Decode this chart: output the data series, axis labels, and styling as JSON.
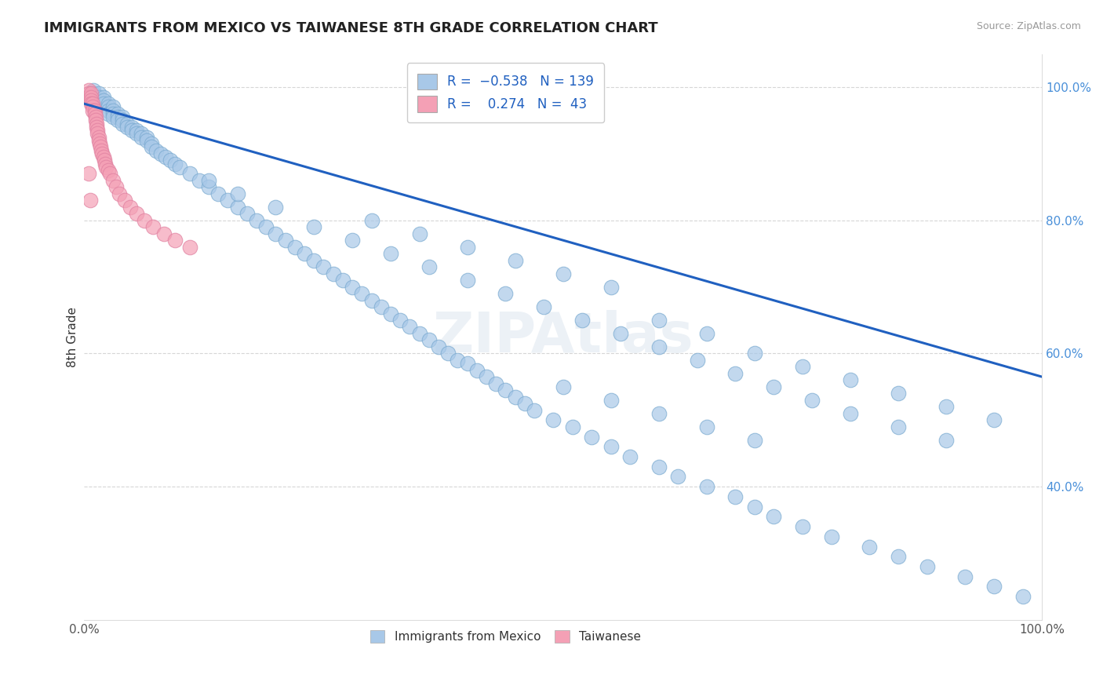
{
  "title": "IMMIGRANTS FROM MEXICO VS TAIWANESE 8TH GRADE CORRELATION CHART",
  "source": "Source: ZipAtlas.com",
  "ylabel": "8th Grade",
  "xlim": [
    0.0,
    1.0
  ],
  "ylim": [
    0.2,
    1.05
  ],
  "yticks": [
    0.4,
    0.6,
    0.8,
    1.0
  ],
  "ytick_labels": [
    "40.0%",
    "60.0%",
    "80.0%",
    "100.0%"
  ],
  "xticks": [
    0.0,
    1.0
  ],
  "xtick_labels": [
    "0.0%",
    "100.0%"
  ],
  "blue_color": "#a8c8e8",
  "pink_color": "#f4a0b5",
  "line_color": "#2060c0",
  "trendline_x": [
    0.0,
    1.0
  ],
  "trendline_y": [
    0.975,
    0.565
  ],
  "blue_scatter_x": [
    0.01,
    0.01,
    0.01,
    0.015,
    0.015,
    0.015,
    0.015,
    0.02,
    0.02,
    0.02,
    0.025,
    0.025,
    0.025,
    0.025,
    0.03,
    0.03,
    0.03,
    0.03,
    0.035,
    0.035,
    0.035,
    0.04,
    0.04,
    0.04,
    0.045,
    0.045,
    0.05,
    0.05,
    0.055,
    0.055,
    0.06,
    0.06,
    0.065,
    0.065,
    0.07,
    0.07,
    0.075,
    0.08,
    0.085,
    0.09,
    0.095,
    0.1,
    0.11,
    0.12,
    0.13,
    0.14,
    0.15,
    0.16,
    0.17,
    0.18,
    0.19,
    0.2,
    0.21,
    0.22,
    0.23,
    0.24,
    0.25,
    0.26,
    0.27,
    0.28,
    0.29,
    0.3,
    0.31,
    0.32,
    0.33,
    0.34,
    0.35,
    0.36,
    0.37,
    0.38,
    0.39,
    0.4,
    0.41,
    0.42,
    0.43,
    0.44,
    0.45,
    0.46,
    0.47,
    0.49,
    0.51,
    0.53,
    0.55,
    0.57,
    0.6,
    0.62,
    0.65,
    0.68,
    0.7,
    0.72,
    0.75,
    0.78,
    0.82,
    0.85,
    0.88,
    0.92,
    0.95,
    0.98,
    0.13,
    0.16,
    0.2,
    0.24,
    0.28,
    0.32,
    0.36,
    0.4,
    0.44,
    0.48,
    0.52,
    0.56,
    0.6,
    0.64,
    0.68,
    0.72,
    0.76,
    0.8,
    0.85,
    0.9,
    0.3,
    0.35,
    0.4,
    0.45,
    0.5,
    0.55,
    0.6,
    0.65,
    0.7,
    0.75,
    0.8,
    0.85,
    0.9,
    0.95,
    0.5,
    0.55,
    0.6,
    0.65,
    0.7
  ],
  "blue_scatter_y": [
    0.995,
    0.99,
    0.985,
    0.99,
    0.985,
    0.98,
    0.975,
    0.985,
    0.98,
    0.975,
    0.975,
    0.97,
    0.965,
    0.96,
    0.97,
    0.965,
    0.96,
    0.955,
    0.96,
    0.955,
    0.95,
    0.955,
    0.95,
    0.945,
    0.945,
    0.94,
    0.94,
    0.935,
    0.935,
    0.93,
    0.93,
    0.925,
    0.925,
    0.92,
    0.915,
    0.91,
    0.905,
    0.9,
    0.895,
    0.89,
    0.885,
    0.88,
    0.87,
    0.86,
    0.85,
    0.84,
    0.83,
    0.82,
    0.81,
    0.8,
    0.79,
    0.78,
    0.77,
    0.76,
    0.75,
    0.74,
    0.73,
    0.72,
    0.71,
    0.7,
    0.69,
    0.68,
    0.67,
    0.66,
    0.65,
    0.64,
    0.63,
    0.62,
    0.61,
    0.6,
    0.59,
    0.585,
    0.575,
    0.565,
    0.555,
    0.545,
    0.535,
    0.525,
    0.515,
    0.5,
    0.49,
    0.475,
    0.46,
    0.445,
    0.43,
    0.415,
    0.4,
    0.385,
    0.37,
    0.355,
    0.34,
    0.325,
    0.31,
    0.295,
    0.28,
    0.265,
    0.25,
    0.235,
    0.86,
    0.84,
    0.82,
    0.79,
    0.77,
    0.75,
    0.73,
    0.71,
    0.69,
    0.67,
    0.65,
    0.63,
    0.61,
    0.59,
    0.57,
    0.55,
    0.53,
    0.51,
    0.49,
    0.47,
    0.8,
    0.78,
    0.76,
    0.74,
    0.72,
    0.7,
    0.65,
    0.63,
    0.6,
    0.58,
    0.56,
    0.54,
    0.52,
    0.5,
    0.55,
    0.53,
    0.51,
    0.49,
    0.47
  ],
  "pink_scatter_x": [
    0.005,
    0.005,
    0.005,
    0.007,
    0.007,
    0.007,
    0.007,
    0.009,
    0.009,
    0.009,
    0.011,
    0.011,
    0.012,
    0.012,
    0.013,
    0.013,
    0.014,
    0.014,
    0.015,
    0.015,
    0.016,
    0.017,
    0.018,
    0.019,
    0.02,
    0.021,
    0.022,
    0.023,
    0.025,
    0.027,
    0.03,
    0.033,
    0.037,
    0.042,
    0.048,
    0.055,
    0.063,
    0.072,
    0.083,
    0.095,
    0.11,
    0.005,
    0.006
  ],
  "pink_scatter_y": [
    0.995,
    0.99,
    0.985,
    0.99,
    0.985,
    0.98,
    0.975,
    0.975,
    0.97,
    0.965,
    0.965,
    0.96,
    0.955,
    0.95,
    0.945,
    0.94,
    0.935,
    0.93,
    0.925,
    0.92,
    0.915,
    0.91,
    0.905,
    0.9,
    0.895,
    0.89,
    0.885,
    0.88,
    0.875,
    0.87,
    0.86,
    0.85,
    0.84,
    0.83,
    0.82,
    0.81,
    0.8,
    0.79,
    0.78,
    0.77,
    0.76,
    0.87,
    0.83
  ]
}
